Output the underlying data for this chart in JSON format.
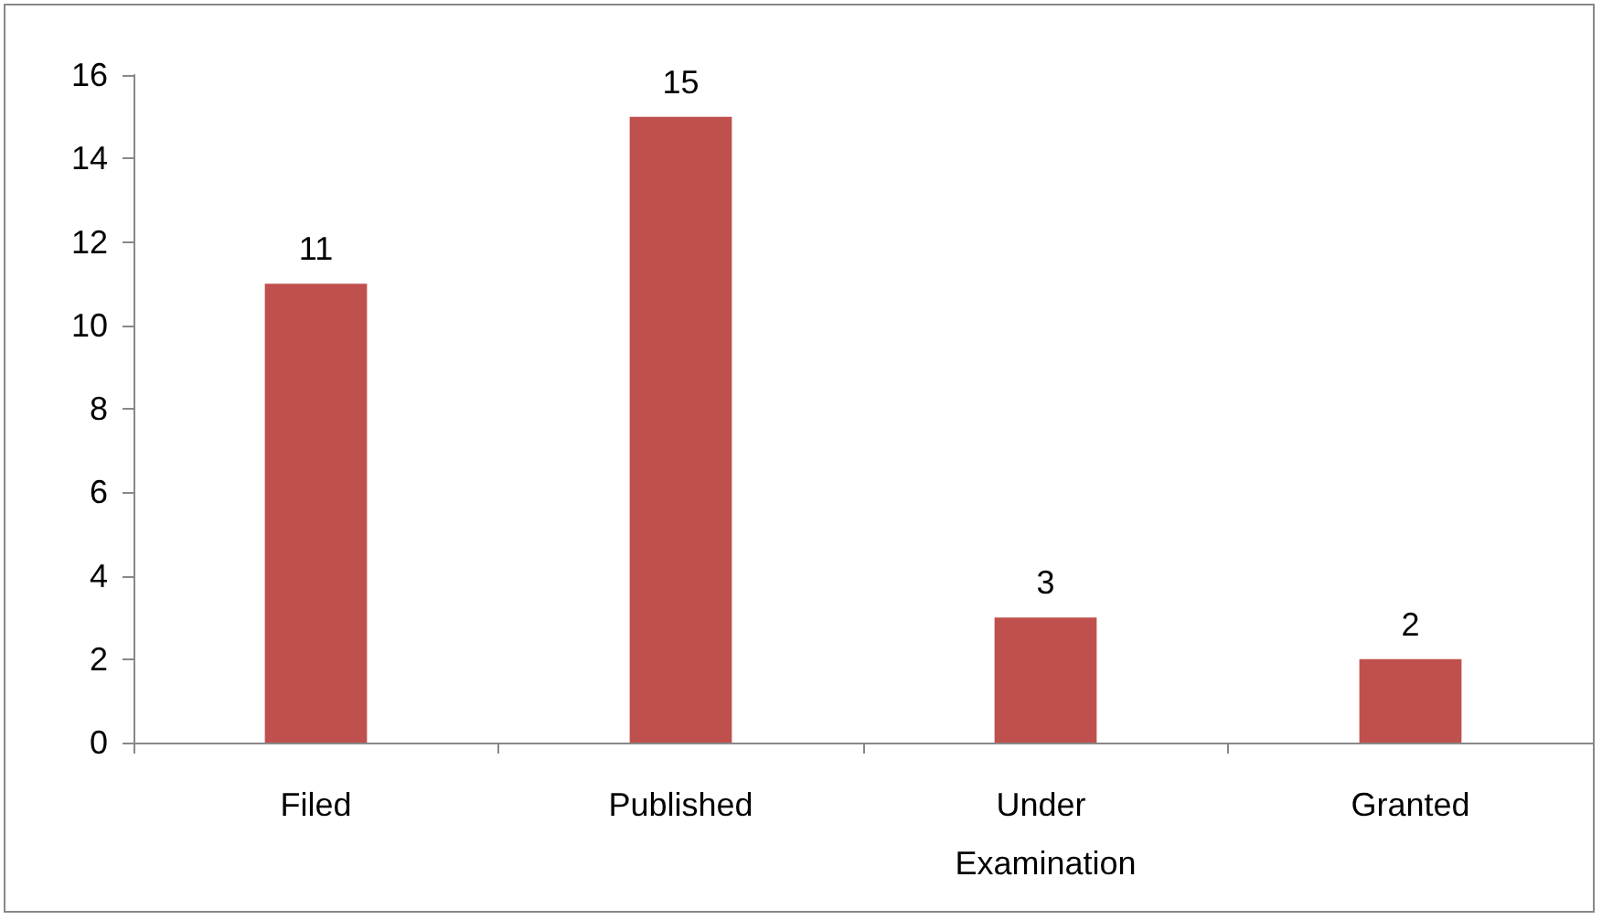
{
  "chart_data": {
    "type": "bar",
    "categories": [
      "Filed",
      "Published",
      "Under Examination",
      "Granted"
    ],
    "values": [
      11,
      15,
      3,
      2
    ],
    "color": "#c0504d",
    "ylim": [
      0,
      16
    ],
    "yticks": [
      0,
      2,
      4,
      6,
      8,
      10,
      12,
      14,
      16
    ],
    "grid": false,
    "data_labels": true
  }
}
